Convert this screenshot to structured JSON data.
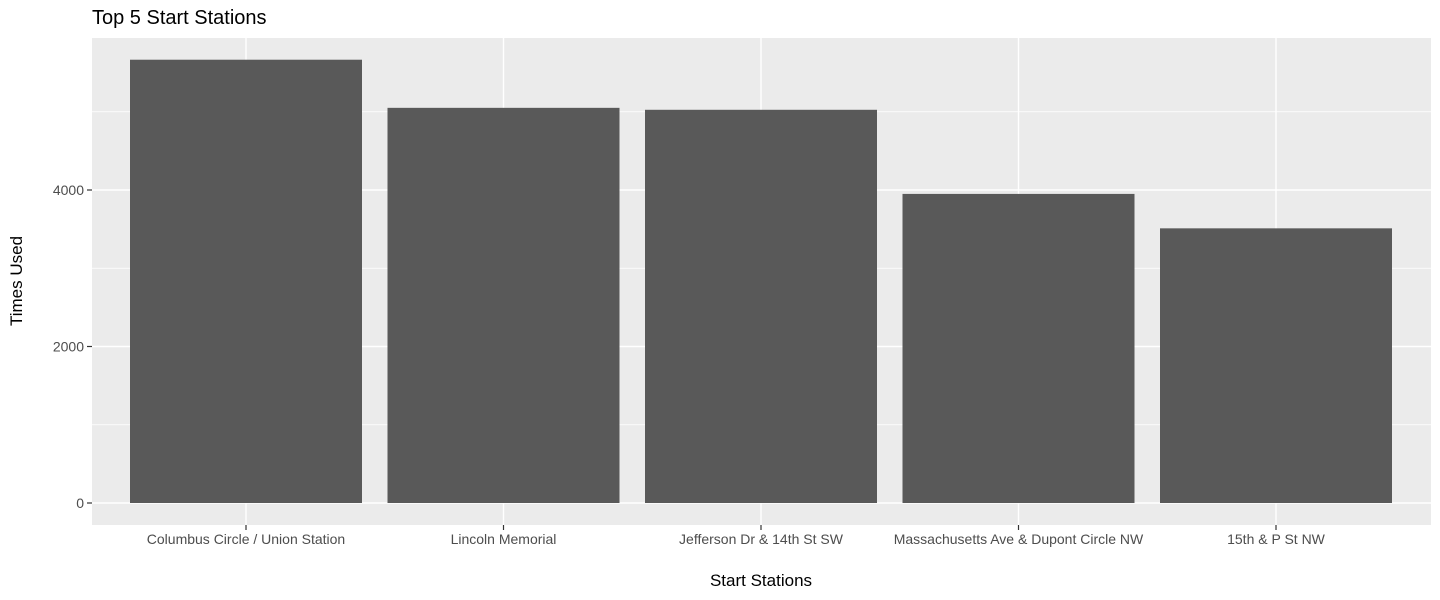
{
  "chart_data": {
    "type": "bar",
    "title": "Top 5 Start Stations",
    "xlabel": "Start Stations",
    "ylabel": "Times Used",
    "categories": [
      "Columbus Circle / Union Station",
      "Lincoln Memorial",
      "Jefferson Dr & 14th St SW",
      "Massachusetts Ave & Dupont Circle NW",
      "15th & P St NW"
    ],
    "values": [
      5665,
      5050,
      5025,
      3950,
      3510
    ],
    "ylim": [
      0,
      5950
    ],
    "y_ticks": [
      0,
      2000,
      4000
    ],
    "y_minor_ticks": [
      1000,
      3000,
      5000
    ],
    "grid": true,
    "legend": "none",
    "colors": {
      "bar": "#595959",
      "panel": "#ebebeb",
      "grid": "#ffffff",
      "tick": "#333333",
      "tick_label": "#4d4d4d"
    }
  }
}
